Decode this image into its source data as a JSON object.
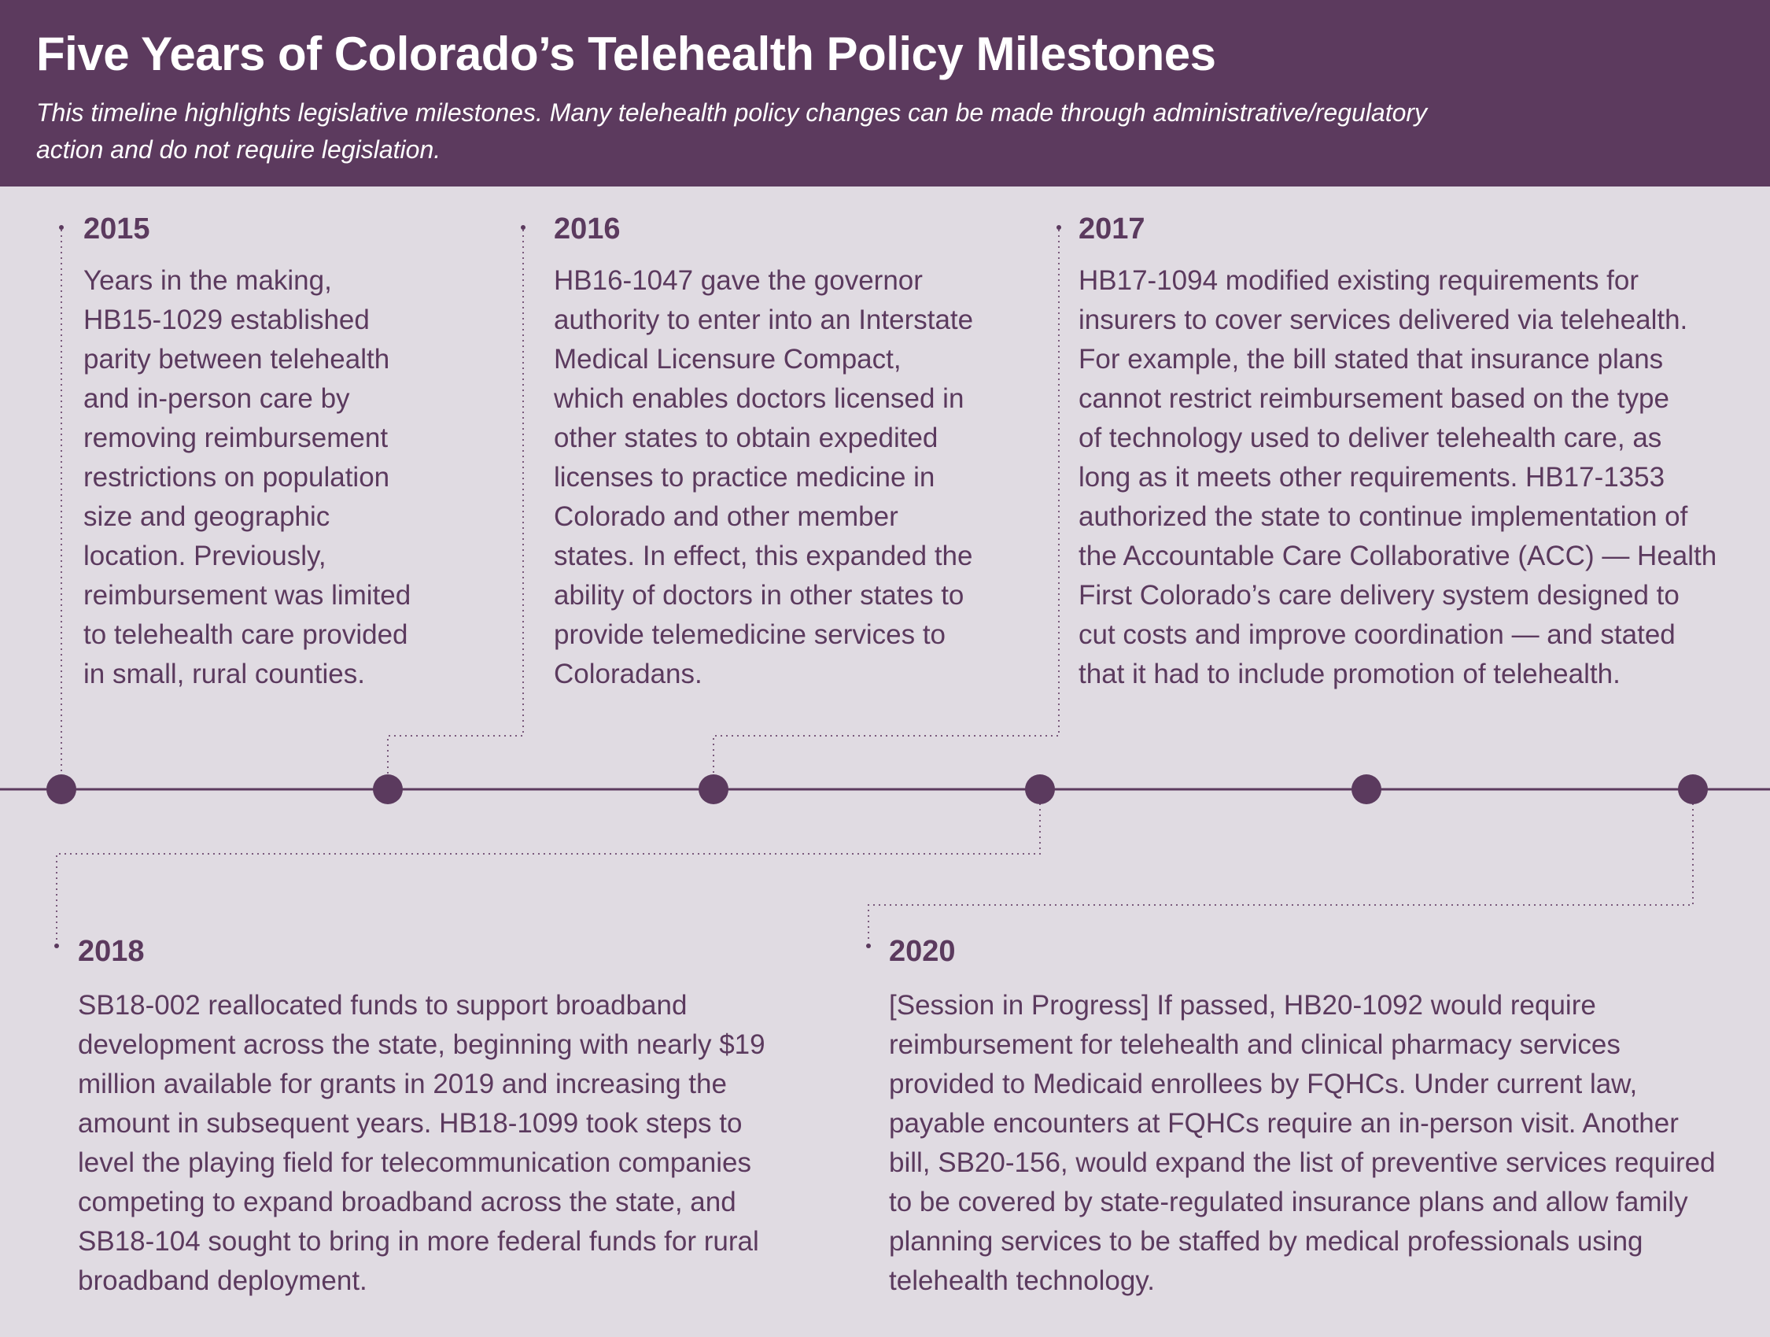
{
  "header": {
    "title": "Five Years of Colorado’s Telehealth Policy Milestones",
    "subtitle_lines": [
      "This timeline highlights legislative milestones. Many telehealth policy changes can be made through administrative/regulatory",
      "action and do not require legislation."
    ]
  },
  "colors": {
    "header_bg": "#5c3a5e",
    "page_bg": "#e0dbe2",
    "text": "#5b3a5e",
    "dot": "#5b3a5e"
  },
  "milestones": [
    {
      "year": "2015",
      "lines": [
        "Years in the making,",
        "HB15-1029 established",
        "parity between telehealth",
        "and in-person care by",
        "removing reimbursement",
        "restrictions on population",
        "size and geographic",
        "location. Previously,",
        "reimbursement was limited",
        "to telehealth care provided",
        "in small, rural counties."
      ]
    },
    {
      "year": "2016",
      "lines": [
        "HB16-1047 gave the governor",
        "authority to enter into an Interstate",
        "Medical Licensure Compact,",
        "which enables doctors licensed in",
        "other states to obtain expedited",
        "licenses to practice medicine in",
        "Colorado and other member",
        "states. In effect, this expanded the",
        "ability of doctors in other states to",
        "provide telemedicine services to",
        "Coloradans."
      ]
    },
    {
      "year": "2017",
      "lines": [
        "HB17-1094 modified existing requirements for",
        "insurers to cover services delivered via telehealth.",
        "For example, the bill stated that insurance plans",
        "cannot restrict reimbursement based on the type",
        "of technology used to deliver telehealth care, as",
        "long as it meets other requirements. HB17-1353",
        "authorized the state to continue implementation of",
        "the Accountable Care Collaborative (ACC) — Health",
        "First Colorado’s care delivery system designed to",
        "cut costs and improve coordination — and stated",
        "that it had to include promotion of telehealth."
      ]
    },
    {
      "year": "2018",
      "lines": [
        "SB18-002 reallocated funds to support broadband",
        "development across the state, beginning with nearly $19",
        "million available for grants in 2019 and increasing the",
        "amount in subsequent years. HB18-1099 took steps to",
        "level the playing field for telecommunication companies",
        "competing to expand broadband across the state, and",
        "SB18-104 sought to bring in more federal funds for rural",
        "broadband deployment."
      ]
    },
    {
      "year": "2020",
      "lines": [
        "[Session in Progress] If passed, HB20-1092 would require",
        "reimbursement for telehealth and clinical pharmacy services",
        "provided to Medicaid enrollees by FQHCs. Under current law,",
        "payable encounters at FQHCs require an in-person visit. Another",
        "bill, SB20-156, would expand the list of preventive services required",
        "to be covered by state-regulated insurance plans and allow family",
        "planning services to be staffed by medical professionals using",
        "telehealth technology."
      ]
    }
  ]
}
